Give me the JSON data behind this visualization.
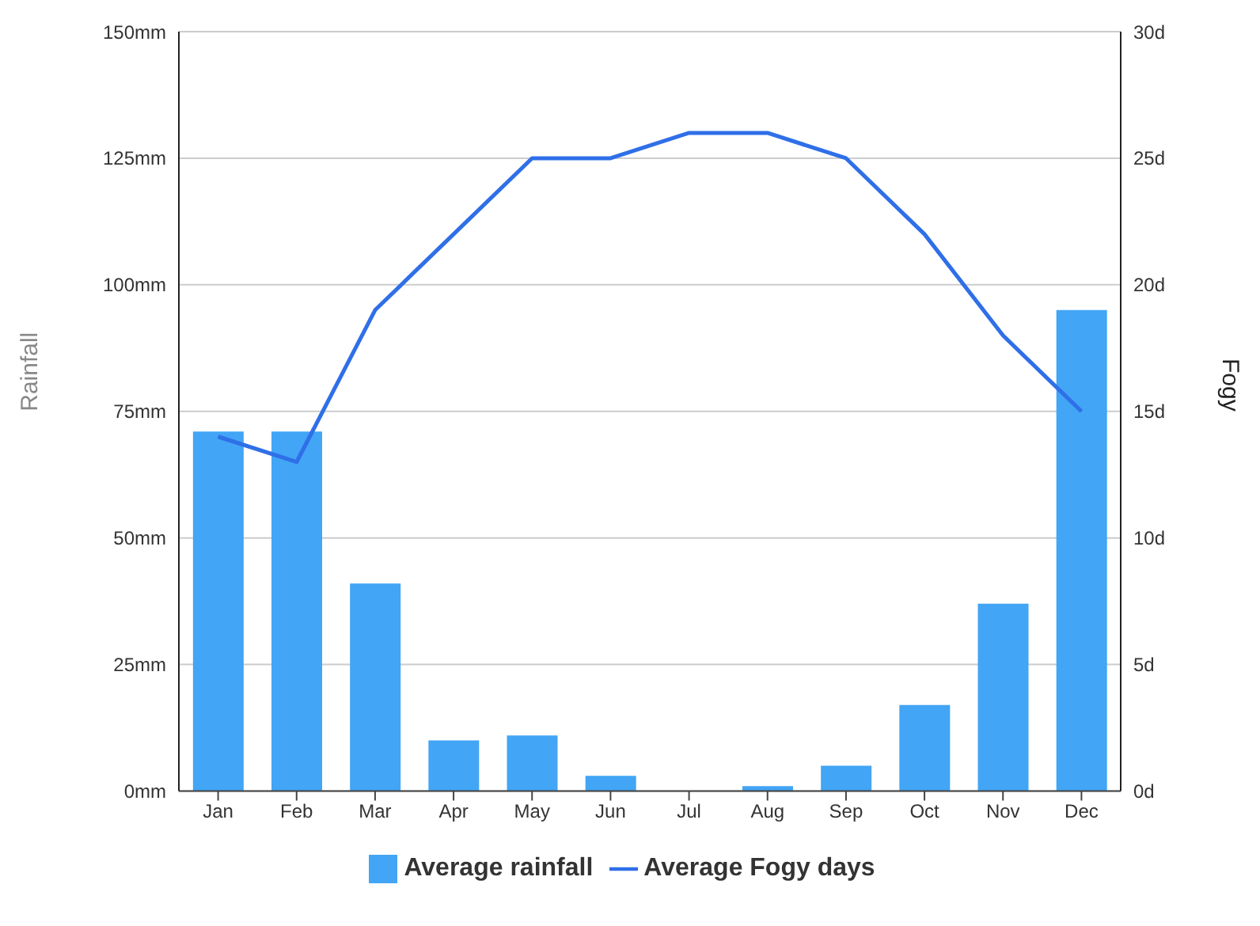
{
  "chart_data": {
    "type": "bar",
    "ylabel": "Rainfall",
    "y2label": "Fogy",
    "categories": [
      "Jan",
      "Feb",
      "Mar",
      "Apr",
      "May",
      "Jun",
      "Jul",
      "Aug",
      "Sep",
      "Oct",
      "Nov",
      "Dec"
    ],
    "series": [
      {
        "name": "Average rainfall",
        "color": "#42a5f5",
        "values": [
          71,
          71,
          41,
          10,
          11,
          3,
          0,
          1,
          5,
          17,
          37,
          95
        ]
      },
      {
        "name": "Average Fogy days",
        "type": "line",
        "axis": "y2",
        "color": "#2f6fe8",
        "values": [
          14,
          13,
          19,
          22,
          25,
          25,
          26,
          26,
          25,
          22,
          18,
          15
        ]
      }
    ],
    "ylim": [
      0,
      150
    ],
    "yticks": [
      {
        "value": 0,
        "label": "0mm"
      },
      {
        "value": 25,
        "label": "25mm"
      },
      {
        "value": 50,
        "label": "50mm"
      },
      {
        "value": 75,
        "label": "75mm"
      },
      {
        "value": 100,
        "label": "100mm"
      },
      {
        "value": 125,
        "label": "125mm"
      },
      {
        "value": 150,
        "label": "150mm"
      }
    ],
    "y2lim": [
      0,
      30
    ],
    "y2ticks": [
      {
        "value": 0,
        "label": "0d"
      },
      {
        "value": 5,
        "label": "5d"
      },
      {
        "value": 10,
        "label": "10d"
      },
      {
        "value": 15,
        "label": "15d"
      },
      {
        "value": 20,
        "label": "20d"
      },
      {
        "value": 25,
        "label": "25d"
      },
      {
        "value": 30,
        "label": "30d"
      }
    ],
    "grid": "y",
    "legend": "bottom",
    "marker": "none",
    "line_style": "solid"
  }
}
